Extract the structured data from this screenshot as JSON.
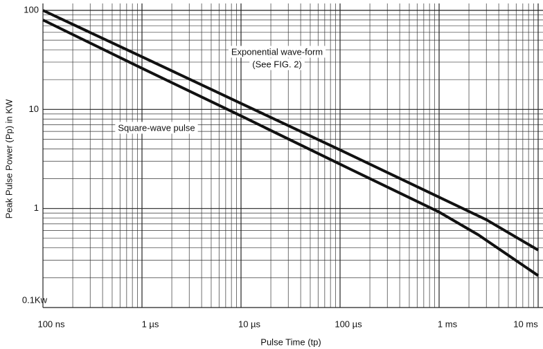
{
  "chart_data": {
    "type": "line",
    "xlabel": "Pulse Time (tp)",
    "ylabel": "Peak Pulse Power (Pp) in KW",
    "xscale": "log",
    "yscale": "log",
    "grid": true,
    "minor_grid": true,
    "xlim": [
      0.1,
      10000
    ],
    "ylim": [
      0.1,
      100
    ],
    "xticks": [
      {
        "value": 0.1,
        "label": "100 ns"
      },
      {
        "value": 1,
        "label": "1 µs"
      },
      {
        "value": 10,
        "label": "10 µs"
      },
      {
        "value": 100,
        "label": "100 µs"
      },
      {
        "value": 1000,
        "label": "1 ms"
      },
      {
        "value": 10000,
        "label": "10 ms"
      }
    ],
    "yticks": [
      {
        "value": 0.1,
        "label": "0.1Kw"
      },
      1,
      10,
      100
    ],
    "series": [
      {
        "name": "Exponential wave-form",
        "color": "#111111",
        "x": [
          0.1,
          1,
          10,
          100,
          1000,
          3000,
          10000
        ],
        "values": [
          100,
          34,
          11.5,
          3.9,
          1.3,
          0.77,
          0.38
        ]
      },
      {
        "name": "Square-wave pulse",
        "color": "#111111",
        "x": [
          0.1,
          1,
          10,
          100,
          1000,
          2500,
          10000
        ],
        "values": [
          80,
          26,
          8.6,
          2.8,
          0.92,
          0.54,
          0.21
        ]
      }
    ],
    "annotations": [
      "Exponential wave-form",
      "(See FIG. 2)",
      "Square-wave pulse"
    ]
  }
}
